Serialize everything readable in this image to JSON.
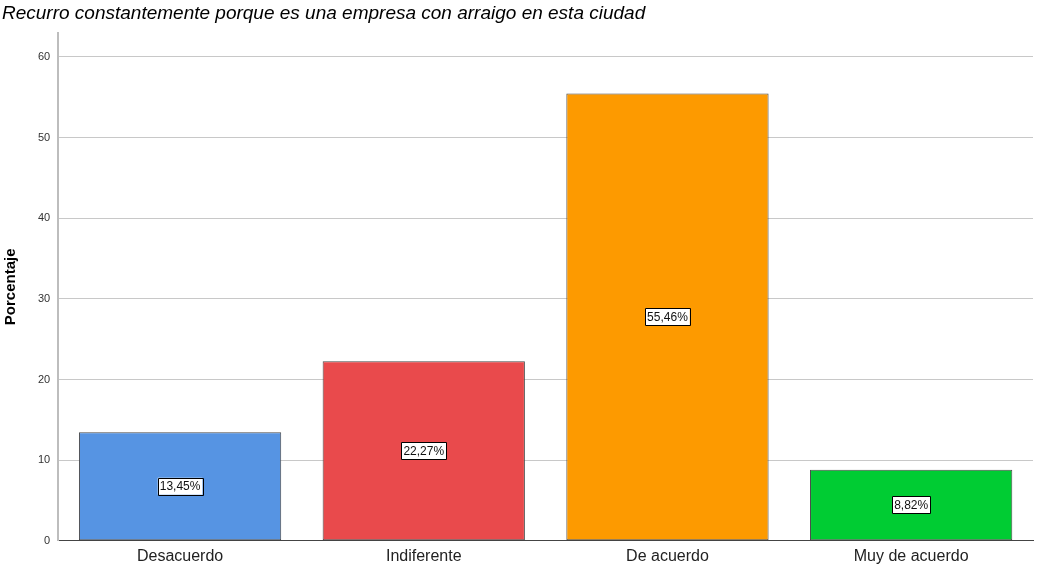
{
  "chart_data": {
    "type": "bar",
    "title": "Recurro constantemente porque es una empresa con arraigo en esta ciudad",
    "ylabel": "Porcentaje",
    "categories": [
      "Desacuerdo",
      "Indiferente",
      "De acuerdo",
      "Muy de acuerdo"
    ],
    "values": [
      13.45,
      22.27,
      55.46,
      8.82
    ],
    "colors": [
      "#5694e3",
      "#e94a4c",
      "#fd9a00",
      "#00cc33"
    ],
    "value_labels": [
      "13,45%",
      "22,27%",
      "55,46%",
      "8,82%"
    ],
    "ylim": [
      0,
      63
    ],
    "yticks": [
      0,
      10,
      20,
      30,
      40,
      50,
      60
    ],
    "grid": "y"
  }
}
